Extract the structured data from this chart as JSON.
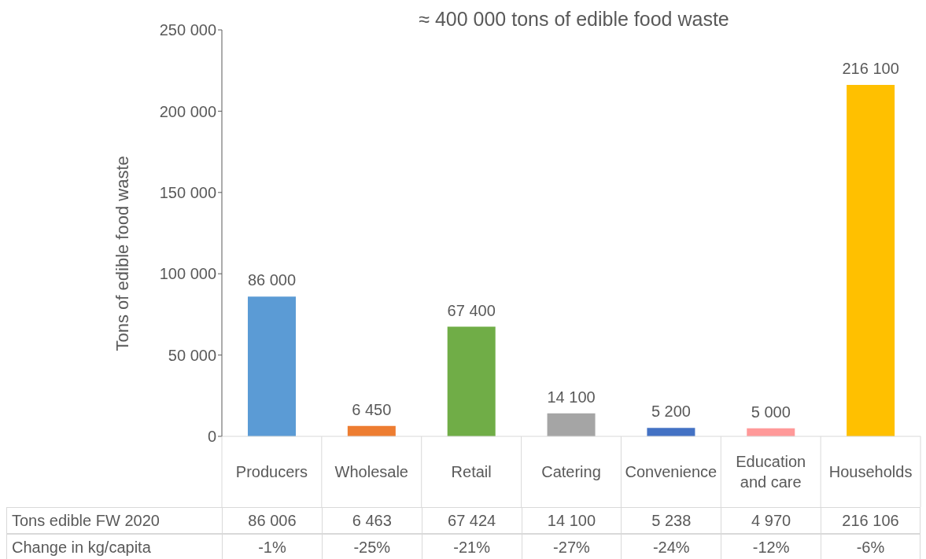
{
  "chart_data": {
    "type": "bar",
    "title": "≈ 400 000 tons of edible food waste",
    "ylabel": "Tons of edible food waste",
    "categories": [
      "Producers",
      "Wholesale",
      "Retail",
      "Catering",
      "Convenience",
      "Education and care",
      "Households"
    ],
    "values": [
      86000,
      6450,
      67400,
      14100,
      5200,
      5000,
      216100
    ],
    "colors": [
      "#5b9bd5",
      "#ed7d31",
      "#70ad47",
      "#a5a5a5",
      "#4472c4",
      "#ff9999",
      "#ffc000"
    ],
    "value_labels": [
      "86 000",
      "6 450",
      "67 400",
      "14 100",
      "5 200",
      "5 000",
      "216 100"
    ],
    "ylim": [
      0,
      250000
    ],
    "yticks": [
      0,
      50000,
      100000,
      150000,
      200000,
      250000
    ],
    "grid": false,
    "legend": false,
    "annotations": [
      "Tons edible FW 2020",
      "86 006",
      "6 463",
      "67 424",
      "14 100",
      "5 238",
      "4 970",
      "216 106",
      "Change in kg/capita",
      "-1%",
      "-25%",
      "-21%",
      "-27%",
      "-24%",
      "-12%",
      "-6%"
    ]
  }
}
